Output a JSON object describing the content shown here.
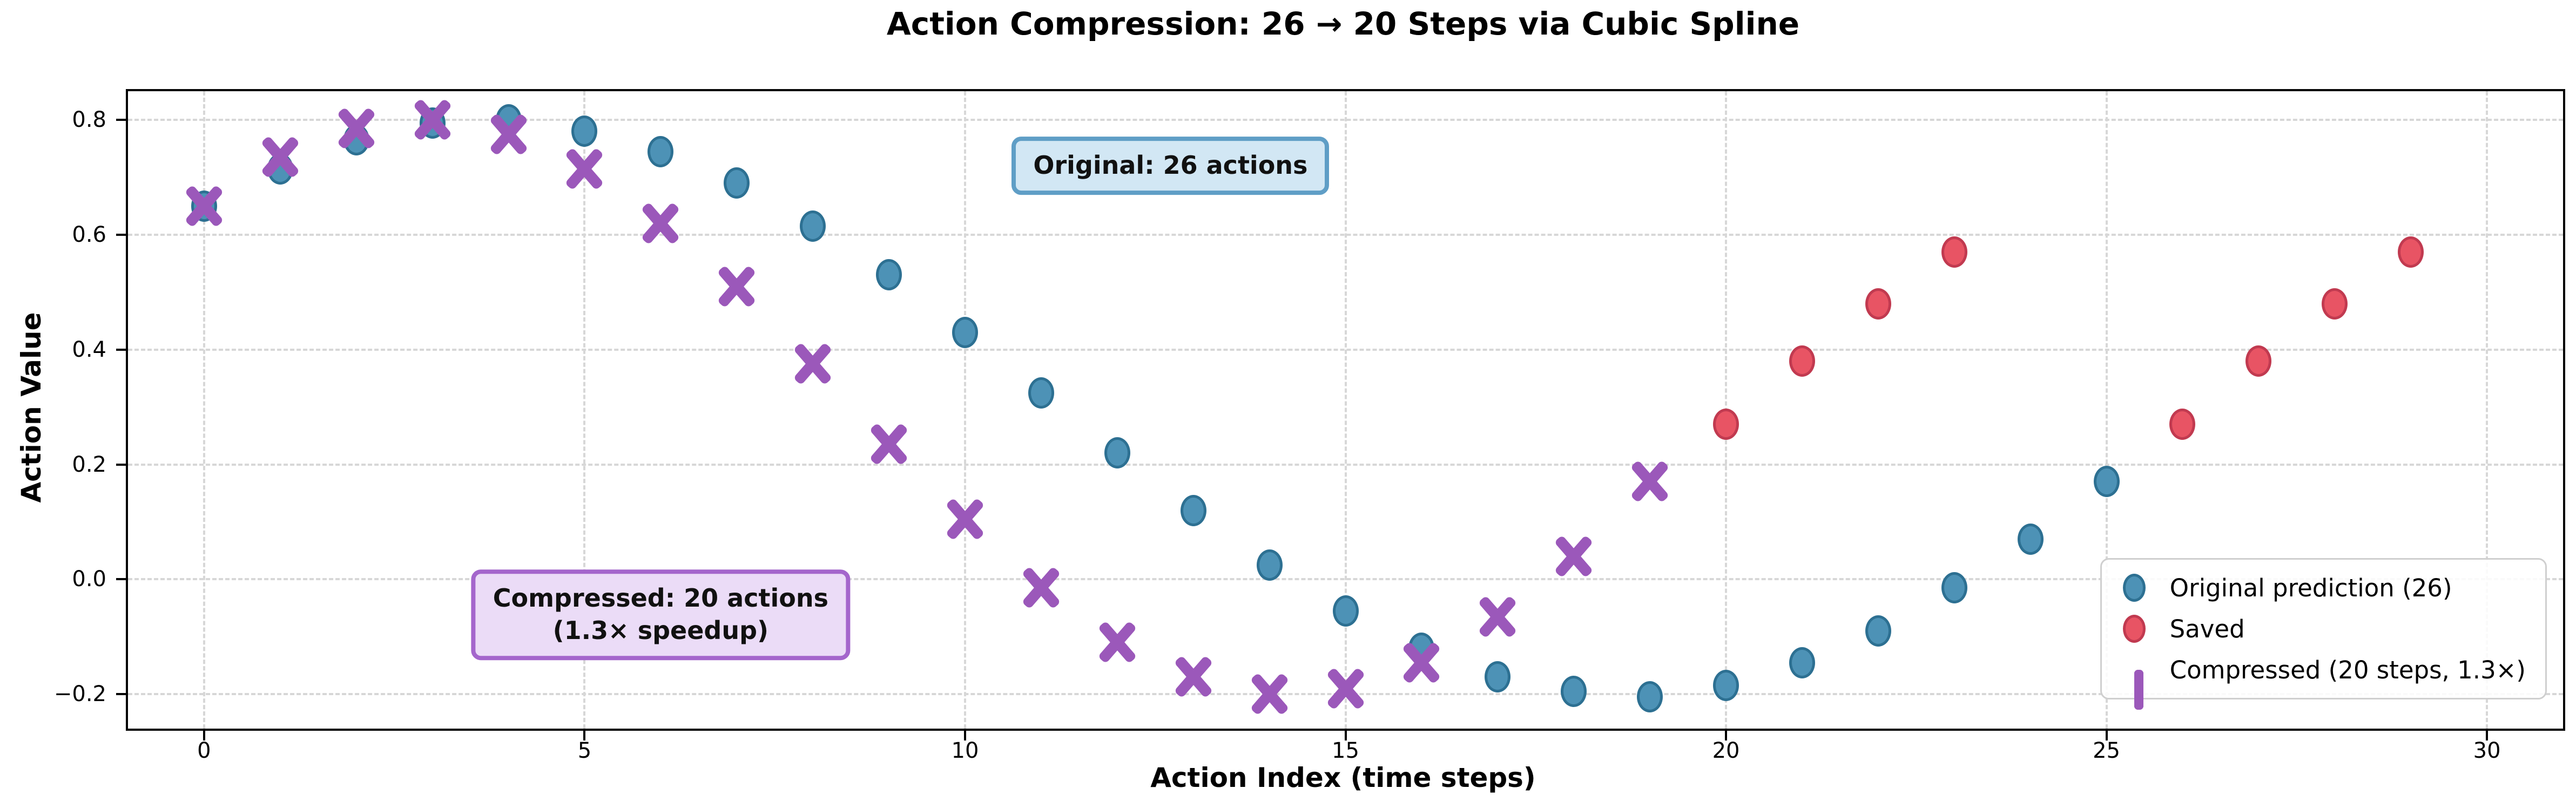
{
  "chart_data": {
    "type": "scatter",
    "title": "Action Compression: 26 → 20 Steps via Cubic Spline",
    "xlabel": "Action Index (time steps)",
    "ylabel": "Action Value",
    "xlim": [
      -1,
      31
    ],
    "ylim": [
      -0.26,
      0.85
    ],
    "grid": true,
    "legend_position": "lower right",
    "xticks": [
      {
        "v": 0,
        "label": "0"
      },
      {
        "v": 5,
        "label": "5"
      },
      {
        "v": 10,
        "label": "10"
      },
      {
        "v": 15,
        "label": "15"
      },
      {
        "v": 20,
        "label": "20"
      },
      {
        "v": 25,
        "label": "25"
      },
      {
        "v": 30,
        "label": "30"
      }
    ],
    "yticks": [
      {
        "v": 0.8,
        "label": "0.8"
      },
      {
        "v": 0.6,
        "label": "0.6"
      },
      {
        "v": 0.4,
        "label": "0.4"
      },
      {
        "v": 0.2,
        "label": "0.2"
      },
      {
        "v": 0.0,
        "label": "0.0"
      },
      {
        "v": -0.2,
        "label": "−0.2"
      }
    ],
    "series": [
      {
        "name": "Original prediction (26)",
        "marker": "circle",
        "fill": "#4d92b6",
        "edge": "#2d7092",
        "x": [
          0,
          1,
          2,
          3,
          4,
          5,
          6,
          7,
          8,
          9,
          10,
          11,
          12,
          13,
          14,
          15,
          16,
          17,
          18,
          19,
          20,
          21,
          22,
          23,
          24,
          25
        ],
        "y": [
          0.65,
          0.715,
          0.765,
          0.795,
          0.8,
          0.78,
          0.745,
          0.69,
          0.615,
          0.53,
          0.43,
          0.325,
          0.22,
          0.12,
          0.025,
          -0.055,
          -0.12,
          -0.17,
          -0.195,
          -0.205,
          -0.185,
          -0.145,
          -0.09,
          -0.015,
          0.07,
          0.17
        ]
      },
      {
        "name": "Saved",
        "marker": "circle",
        "fill": "#e85464",
        "edge": "#c13a50",
        "x": [
          20,
          21,
          22,
          23,
          26,
          27,
          28,
          29
        ],
        "y": [
          0.27,
          0.38,
          0.48,
          0.57,
          0.27,
          0.38,
          0.48,
          0.57
        ]
      },
      {
        "name": "Compressed (20 steps, 1.3×)",
        "marker": "x",
        "fill": "#9b58ba",
        "x": [
          0,
          1,
          2,
          3,
          4,
          5,
          6,
          7,
          8,
          9,
          10,
          11,
          12,
          13,
          14,
          15,
          16,
          17,
          18,
          19
        ],
        "y": [
          0.65,
          0.735,
          0.785,
          0.8,
          0.775,
          0.715,
          0.62,
          0.51,
          0.375,
          0.235,
          0.105,
          -0.015,
          -0.11,
          -0.17,
          -0.2,
          -0.19,
          -0.145,
          -0.065,
          0.04,
          0.17
        ]
      }
    ],
    "annotations": [
      {
        "text": "Original: 26 actions",
        "x": 12.7,
        "y": 0.72,
        "bg": "#d2e7f4",
        "border": "#5f9ec6"
      },
      {
        "text": "Compressed: 20 actions\n(1.3× speedup)",
        "x": 6.0,
        "y": -0.062,
        "bg": "#ebdcf7",
        "border": "#a466cc"
      }
    ]
  }
}
